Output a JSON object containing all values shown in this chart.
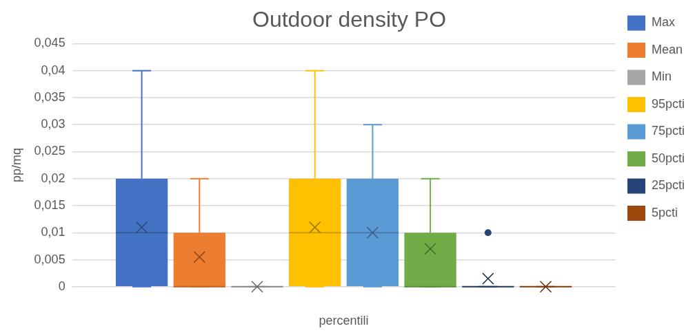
{
  "chart_data": {
    "type": "box",
    "title": "Outdoor density PO",
    "xlabel": "percentili",
    "ylabel": "pp/mq",
    "categories": [
      null
    ],
    "ylim": [
      0,
      0.045
    ],
    "yticks": [
      {
        "value": 0,
        "label": "0"
      },
      {
        "value": 0.005,
        "label": "0,005"
      },
      {
        "value": 0.01,
        "label": "0,01"
      },
      {
        "value": 0.015,
        "label": "0,015"
      },
      {
        "value": 0.02,
        "label": "0,02"
      },
      {
        "value": 0.025,
        "label": "0,025"
      },
      {
        "value": 0.03,
        "label": "0,03"
      },
      {
        "value": 0.035,
        "label": "0,035"
      },
      {
        "value": 0.04,
        "label": "0,04"
      },
      {
        "value": 0.045,
        "label": "0,045"
      }
    ],
    "grid": "y",
    "legend": "right",
    "series": [
      {
        "name": "Max",
        "color": "#4472c4",
        "boxes": [
          {
            "low": 0,
            "q1": 0,
            "median": 0.01,
            "q3": 0.02,
            "high": 0.04,
            "mean": 0.011
          }
        ]
      },
      {
        "name": "Mean",
        "color": "#ed7d31",
        "boxes": [
          {
            "low": 0,
            "q1": 0,
            "median": 0,
            "q3": 0.01,
            "high": 0.02,
            "mean": 0.0055
          }
        ]
      },
      {
        "name": "Min",
        "color": "#a5a5a5",
        "boxes": [
          {
            "low": 0,
            "q1": 0,
            "median": 0,
            "q3": 0,
            "high": 0,
            "mean": 0
          }
        ]
      },
      {
        "name": "95pcti",
        "color": "#ffc000",
        "boxes": [
          {
            "low": 0,
            "q1": 0,
            "median": 0.01,
            "q3": 0.02,
            "high": 0.04,
            "mean": 0.011
          }
        ]
      },
      {
        "name": "75pcti",
        "color": "#5b9bd5",
        "boxes": [
          {
            "low": 0,
            "q1": 0,
            "median": 0.01,
            "q3": 0.02,
            "high": 0.03,
            "mean": 0.01
          }
        ]
      },
      {
        "name": "50pcti",
        "color": "#70ad47",
        "boxes": [
          {
            "low": 0,
            "q1": 0,
            "median": 0,
            "q3": 0.01,
            "high": 0.02,
            "mean": 0.007
          }
        ]
      },
      {
        "name": "25pcti",
        "color": "#264478",
        "boxes": [
          {
            "low": 0,
            "q1": 0,
            "median": 0,
            "q3": 0,
            "high": 0,
            "mean": 0.0015,
            "outliers": [
              0.01
            ]
          }
        ]
      },
      {
        "name": "5pcti",
        "color": "#9e480e",
        "boxes": [
          {
            "low": 0,
            "q1": 0,
            "median": 0,
            "q3": 0,
            "high": 0,
            "mean": 0
          }
        ]
      }
    ]
  }
}
